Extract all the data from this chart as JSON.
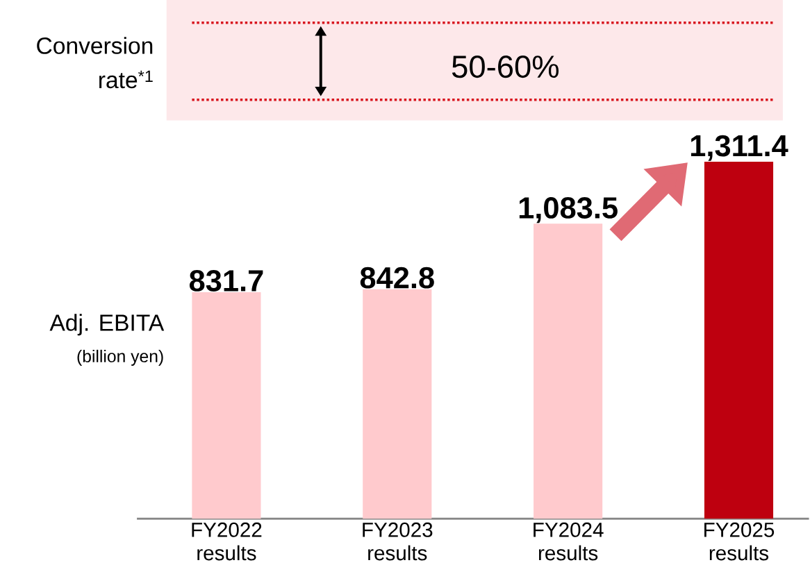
{
  "chart_data": {
    "type": "bar",
    "categories": [
      "FY2022 results",
      "FY2023 results",
      "FY2024 results",
      "FY2025 results"
    ],
    "values": [
      831.7,
      842.8,
      1083.5,
      1311.4
    ],
    "colors": [
      "#ffcacd",
      "#ffcacd",
      "#ffcacd",
      "#be000f"
    ],
    "value_labels": [
      "831.7",
      "842.8",
      "1,083.5",
      "1,311.4"
    ],
    "ylabel": "Adj. EBITA",
    "annotations": [
      "(billion yen)",
      "Conversion rate$^{*1}$",
      "50-60%"
    ]
  }
}
